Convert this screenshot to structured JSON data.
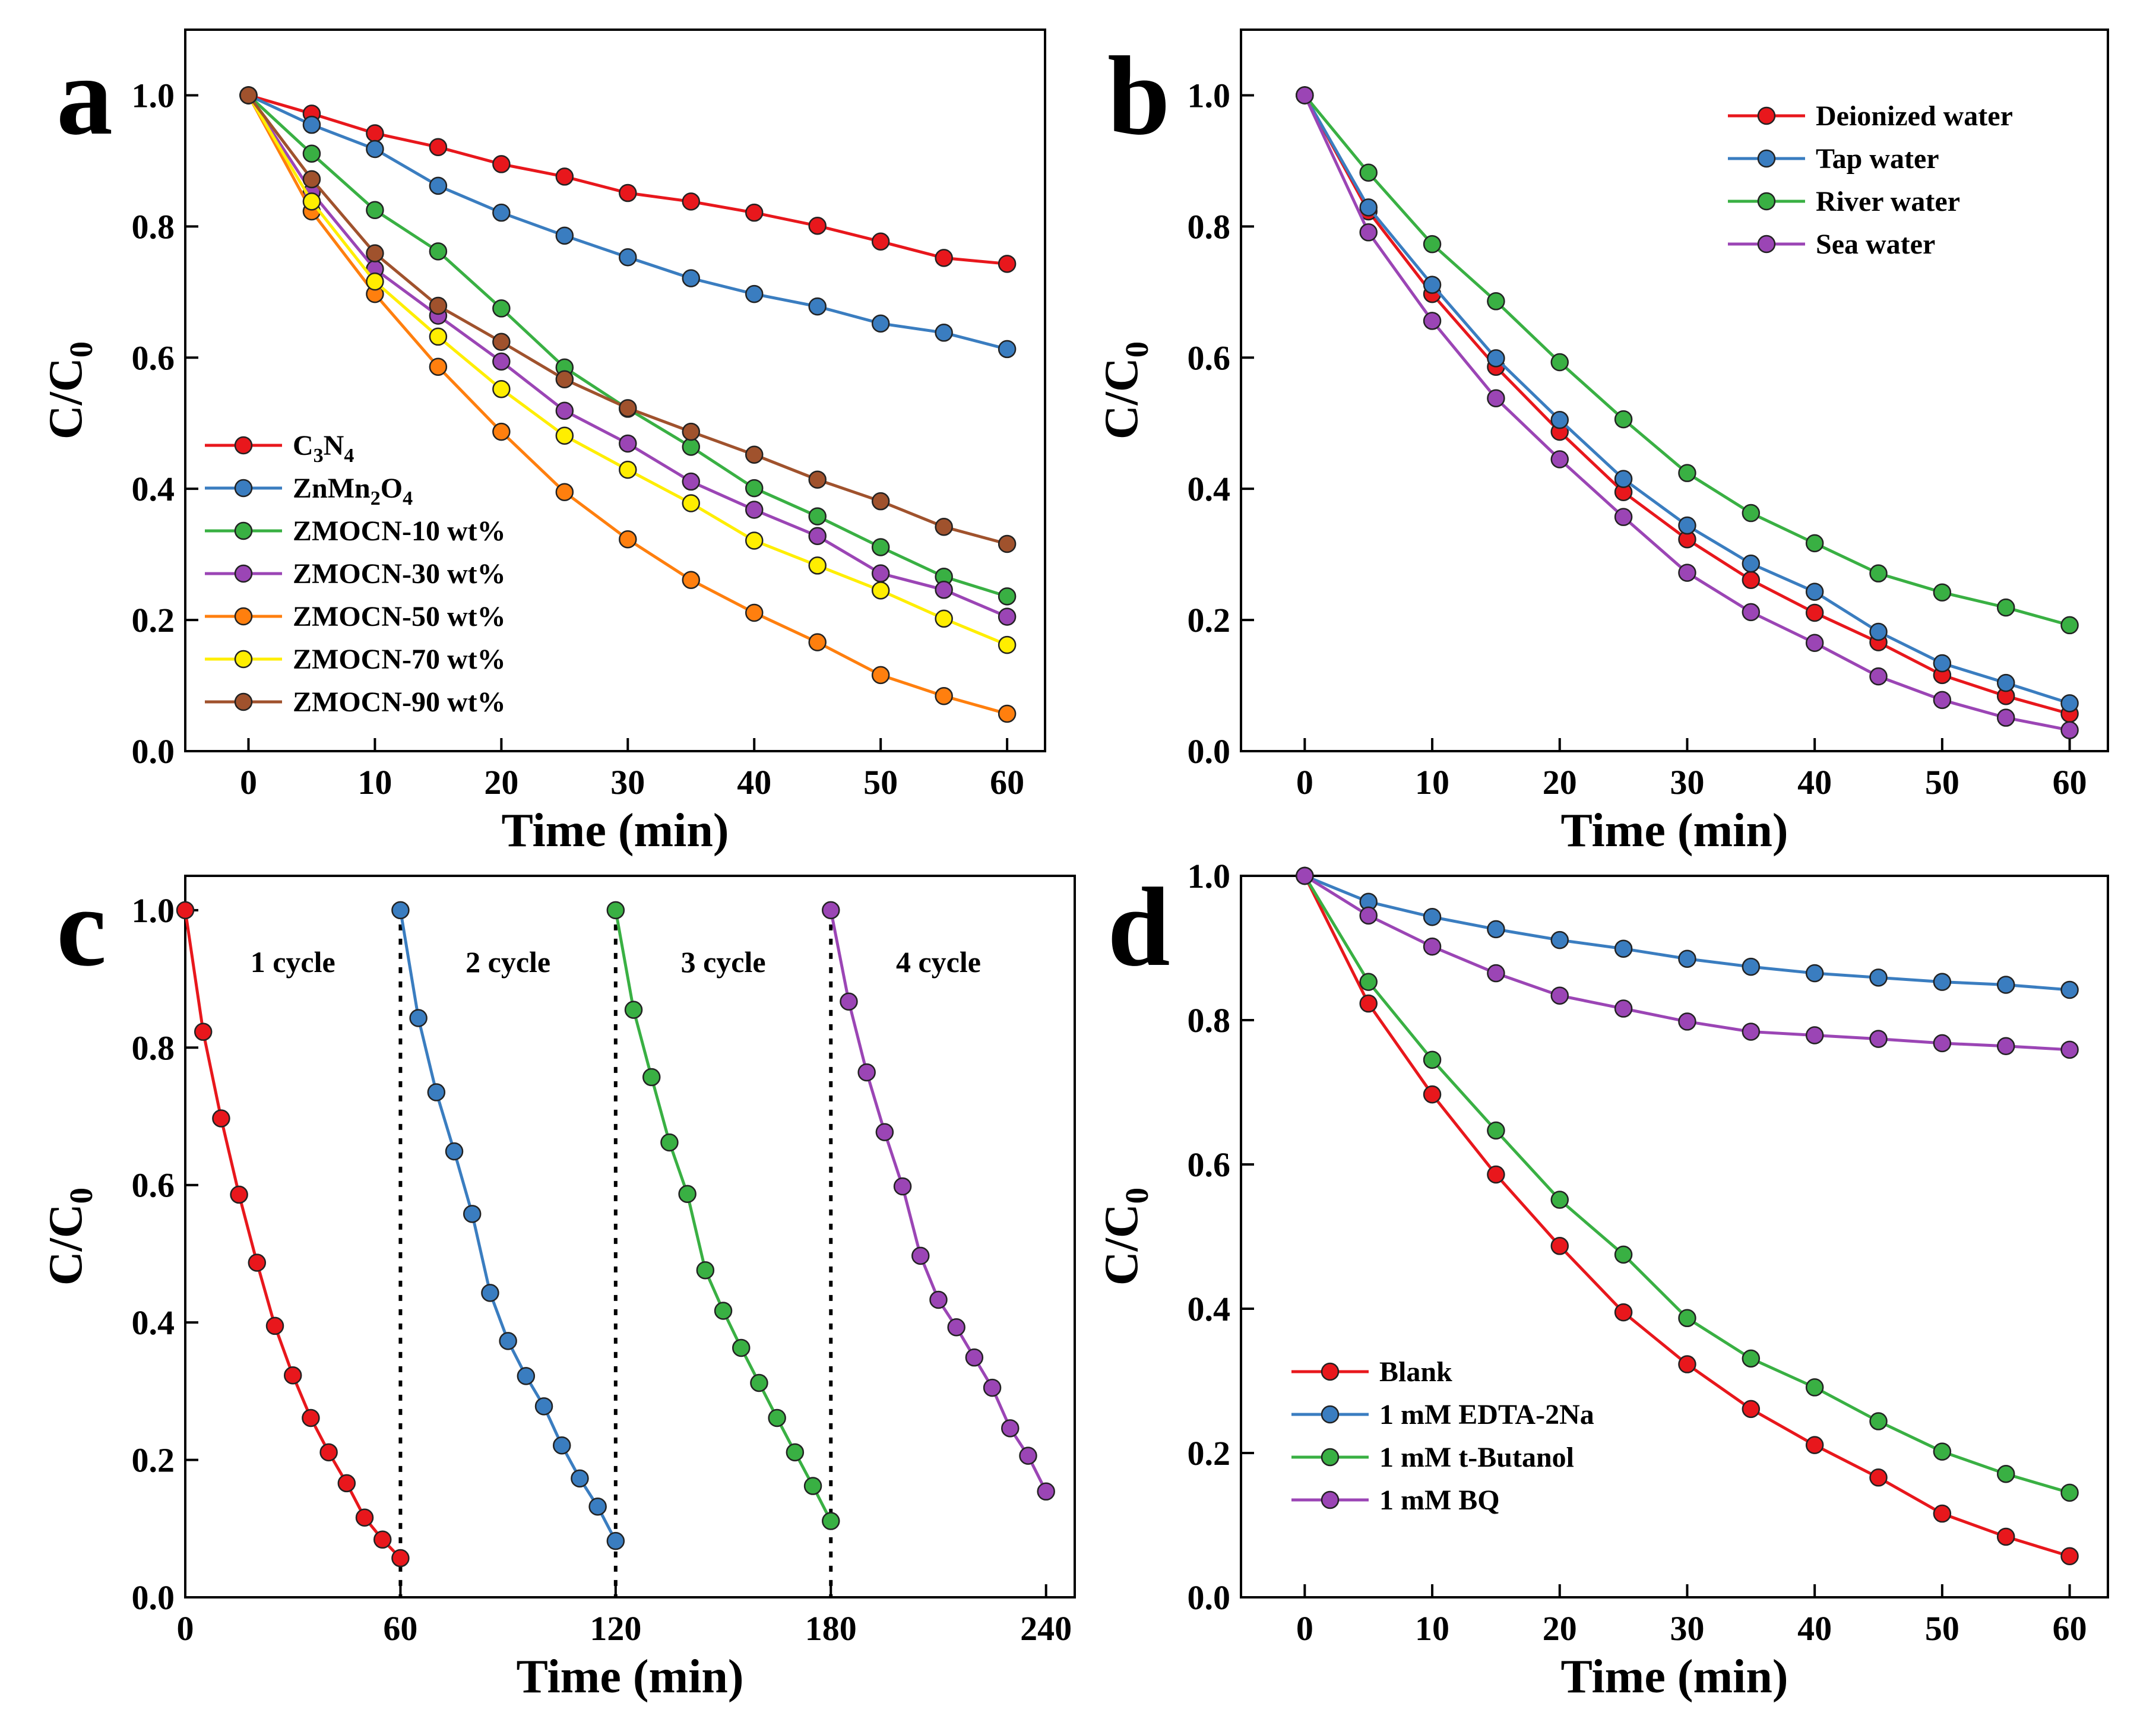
{
  "chart_data": [
    {
      "panel": "a",
      "type": "line",
      "xlabel": "Time (min)",
      "ylabel": "C/C0",
      "xlim": [
        -5,
        63
      ],
      "ylim": [
        0,
        1.1
      ],
      "xticks": [
        0,
        10,
        20,
        30,
        40,
        50,
        60
      ],
      "yticks": [
        0.0,
        0.2,
        0.4,
        0.6,
        0.8,
        1.0
      ],
      "legend_position": "bottom-left",
      "x": [
        0,
        5,
        10,
        15,
        20,
        25,
        30,
        35,
        40,
        45,
        50,
        55,
        60
      ],
      "series": [
        {
          "name": "C3N4",
          "name_parts": [
            "C",
            "3",
            "N",
            "4"
          ],
          "color": "#e8171c",
          "values": [
            1.0,
            0.972,
            0.942,
            0.921,
            0.895,
            0.876,
            0.851,
            0.838,
            0.821,
            0.801,
            0.777,
            0.752,
            0.743
          ]
        },
        {
          "name": "ZnMn2O4",
          "name_parts": [
            "ZnMn",
            "2",
            "O",
            "4"
          ],
          "color": "#3a7dc0",
          "values": [
            1.0,
            0.955,
            0.918,
            0.862,
            0.821,
            0.786,
            0.753,
            0.721,
            0.697,
            0.678,
            0.652,
            0.638,
            0.613
          ]
        },
        {
          "name": "ZMOCN-10 wt%",
          "color": "#39b043",
          "values": [
            1.0,
            0.911,
            0.825,
            0.762,
            0.675,
            0.585,
            0.522,
            0.464,
            0.401,
            0.358,
            0.311,
            0.266,
            0.236
          ]
        },
        {
          "name": "ZMOCN-30 wt%",
          "color": "#9b45b5",
          "values": [
            1.0,
            0.852,
            0.735,
            0.664,
            0.594,
            0.519,
            0.469,
            0.411,
            0.368,
            0.328,
            0.271,
            0.246,
            0.205
          ]
        },
        {
          "name": "ZMOCN-50 wt%",
          "color": "#ff7f0e",
          "values": [
            1.0,
            0.823,
            0.697,
            0.586,
            0.487,
            0.395,
            0.323,
            0.261,
            0.211,
            0.166,
            0.116,
            0.084,
            0.057
          ]
        },
        {
          "name": "ZMOCN-70 wt%",
          "color": "#ffee00",
          "values": [
            1.0,
            0.838,
            0.716,
            0.632,
            0.552,
            0.481,
            0.429,
            0.378,
            0.321,
            0.283,
            0.245,
            0.202,
            0.162
          ]
        },
        {
          "name": "ZMOCN-90 wt%",
          "color": "#a0522d",
          "values": [
            1.0,
            0.872,
            0.759,
            0.679,
            0.624,
            0.567,
            0.523,
            0.487,
            0.452,
            0.414,
            0.381,
            0.342,
            0.316
          ]
        }
      ]
    },
    {
      "panel": "b",
      "type": "line",
      "xlabel": "Time (min)",
      "ylabel": "C/C0",
      "xlim": [
        -5,
        63
      ],
      "ylim": [
        0,
        1.1
      ],
      "xticks": [
        0,
        10,
        20,
        30,
        40,
        50,
        60
      ],
      "yticks": [
        0.0,
        0.2,
        0.4,
        0.6,
        0.8,
        1.0
      ],
      "legend_position": "top-right",
      "x": [
        0,
        5,
        10,
        15,
        20,
        25,
        30,
        35,
        40,
        45,
        50,
        55,
        60
      ],
      "series": [
        {
          "name": "Deionized water",
          "color": "#e8171c",
          "values": [
            1.0,
            0.823,
            0.697,
            0.586,
            0.487,
            0.395,
            0.323,
            0.261,
            0.211,
            0.166,
            0.116,
            0.084,
            0.057
          ]
        },
        {
          "name": "Tap water",
          "color": "#3a7dc0",
          "values": [
            1.0,
            0.829,
            0.711,
            0.599,
            0.505,
            0.415,
            0.344,
            0.286,
            0.243,
            0.182,
            0.134,
            0.104,
            0.073
          ]
        },
        {
          "name": "River water",
          "color": "#39b043",
          "values": [
            1.0,
            0.882,
            0.773,
            0.686,
            0.593,
            0.506,
            0.424,
            0.363,
            0.317,
            0.271,
            0.242,
            0.219,
            0.192
          ]
        },
        {
          "name": "Sea water",
          "color": "#9b45b5",
          "values": [
            1.0,
            0.791,
            0.656,
            0.538,
            0.445,
            0.357,
            0.272,
            0.212,
            0.165,
            0.114,
            0.078,
            0.051,
            0.032
          ]
        }
      ]
    },
    {
      "panel": "c",
      "type": "line",
      "xlabel": "Time (min)",
      "ylabel": "C/C0",
      "xlim": [
        0,
        248
      ],
      "ylim": [
        0,
        1.05
      ],
      "xticks": [
        0,
        60,
        120,
        180,
        240
      ],
      "yticks": [
        0.0,
        0.2,
        0.4,
        0.6,
        0.8,
        1.0
      ],
      "separators_x": [
        60,
        120,
        180
      ],
      "cycle_labels": [
        "1 cycle",
        "2 cycle",
        "3 cycle",
        "4 cycle"
      ],
      "series": [
        {
          "name": "1 cycle",
          "color": "#e8171c",
          "x": [
            0,
            5,
            10,
            15,
            20,
            25,
            30,
            35,
            40,
            45,
            50,
            55,
            60
          ],
          "values": [
            1.0,
            0.823,
            0.697,
            0.586,
            0.487,
            0.395,
            0.323,
            0.261,
            0.211,
            0.166,
            0.116,
            0.084,
            0.057
          ]
        },
        {
          "name": "2 cycle",
          "color": "#3a7dc0",
          "x": [
            60,
            65,
            70,
            75,
            80,
            85,
            90,
            95,
            100,
            105,
            110,
            115,
            120
          ],
          "values": [
            1.0,
            0.843,
            0.735,
            0.649,
            0.558,
            0.443,
            0.373,
            0.322,
            0.278,
            0.221,
            0.173,
            0.132,
            0.082
          ]
        },
        {
          "name": "3 cycle",
          "color": "#39b043",
          "x": [
            120,
            125,
            130,
            135,
            140,
            145,
            150,
            155,
            160,
            165,
            170,
            175,
            180
          ],
          "values": [
            1.0,
            0.855,
            0.757,
            0.662,
            0.587,
            0.476,
            0.417,
            0.363,
            0.312,
            0.261,
            0.211,
            0.162,
            0.111
          ]
        },
        {
          "name": "4 cycle",
          "color": "#9b45b5",
          "x": [
            180,
            185,
            190,
            195,
            200,
            205,
            210,
            215,
            220,
            225,
            230,
            235,
            240
          ],
          "values": [
            1.0,
            0.867,
            0.764,
            0.677,
            0.598,
            0.497,
            0.433,
            0.393,
            0.349,
            0.305,
            0.246,
            0.206,
            0.154
          ]
        }
      ]
    },
    {
      "panel": "d",
      "type": "line",
      "xlabel": "Time (min)",
      "ylabel": "C/C0",
      "xlim": [
        -5,
        63
      ],
      "ylim": [
        0,
        1.0
      ],
      "xticks": [
        0,
        10,
        20,
        30,
        40,
        50,
        60
      ],
      "yticks": [
        0.0,
        0.2,
        0.4,
        0.6,
        0.8,
        1.0
      ],
      "legend_position": "bottom-left",
      "x": [
        0,
        5,
        10,
        15,
        20,
        25,
        30,
        35,
        40,
        45,
        50,
        55,
        60
      ],
      "series": [
        {
          "name": "Blank",
          "color": "#e8171c",
          "values": [
            1.0,
            0.823,
            0.697,
            0.586,
            0.487,
            0.395,
            0.323,
            0.261,
            0.211,
            0.166,
            0.116,
            0.084,
            0.057
          ]
        },
        {
          "name": "1 mM EDTA-2Na",
          "color": "#3a7dc0",
          "values": [
            1.0,
            0.964,
            0.943,
            0.926,
            0.911,
            0.899,
            0.885,
            0.874,
            0.865,
            0.859,
            0.853,
            0.849,
            0.842
          ]
        },
        {
          "name": "1 mM t-Butanol",
          "color": "#39b043",
          "values": [
            1.0,
            0.853,
            0.745,
            0.647,
            0.551,
            0.475,
            0.387,
            0.331,
            0.291,
            0.244,
            0.202,
            0.171,
            0.145
          ]
        },
        {
          "name": "1 mM BQ",
          "color": "#9b45b5",
          "values": [
            1.0,
            0.945,
            0.902,
            0.865,
            0.834,
            0.816,
            0.798,
            0.784,
            0.779,
            0.774,
            0.768,
            0.764,
            0.759
          ]
        }
      ]
    }
  ]
}
